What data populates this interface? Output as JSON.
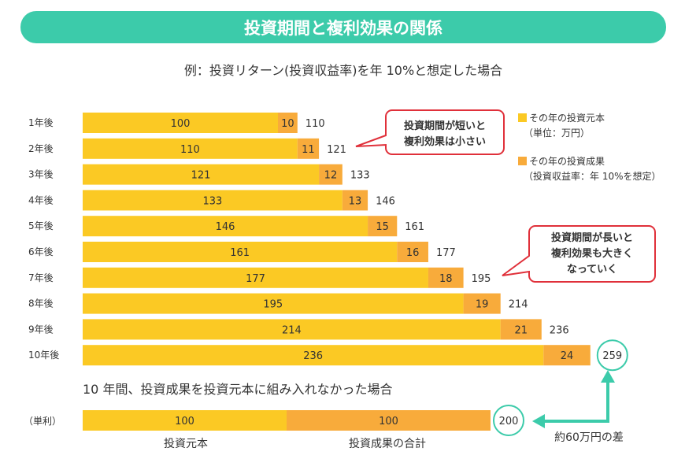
{
  "colors": {
    "principal": "#FBC924",
    "gain": "#F8AB3B",
    "accent": "#3CCBAA",
    "callout": "#E0303A",
    "text": "#333333"
  },
  "title": "投資期間と複利効果の関係",
  "subtitle": "例：投資リターン(投資収益率)を年 10%と想定した場合",
  "legend": {
    "principal": "その年の投資元本",
    "principal_note": "（単位：万円）",
    "gain": "その年の投資成果",
    "gain_note": "（投資収益率：年 10%を想定）"
  },
  "callouts": {
    "short": [
      "投資期間が短いと",
      "複利効果は小さい"
    ],
    "long": [
      "投資期間が長いと",
      "複利効果も大きく",
      "なっていく"
    ]
  },
  "simple": {
    "heading": "10 年間、投資成果を投資元本に組み入れなかった場合",
    "label": "（単利）",
    "principal": 100,
    "gain": 100,
    "total": 200,
    "principal_caption": "投資元本",
    "gain_caption": "投資成果の合計"
  },
  "difference": "約60万円の差",
  "chart_data": {
    "type": "bar",
    "orientation": "horizontal-stacked",
    "categories": [
      "1年後",
      "2年後",
      "3年後",
      "4年後",
      "5年後",
      "6年後",
      "7年後",
      "8年後",
      "9年後",
      "10年後"
    ],
    "series": [
      {
        "name": "その年の投資元本",
        "values": [
          100,
          110,
          121,
          133,
          146,
          161,
          177,
          195,
          214,
          236
        ]
      },
      {
        "name": "その年の投資成果",
        "values": [
          10,
          11,
          12,
          13,
          15,
          16,
          18,
          19,
          21,
          24
        ]
      }
    ],
    "totals": [
      110,
      121,
      133,
      146,
      161,
      177,
      195,
      214,
      236,
      259
    ],
    "legend": "top-right",
    "grid": false
  }
}
